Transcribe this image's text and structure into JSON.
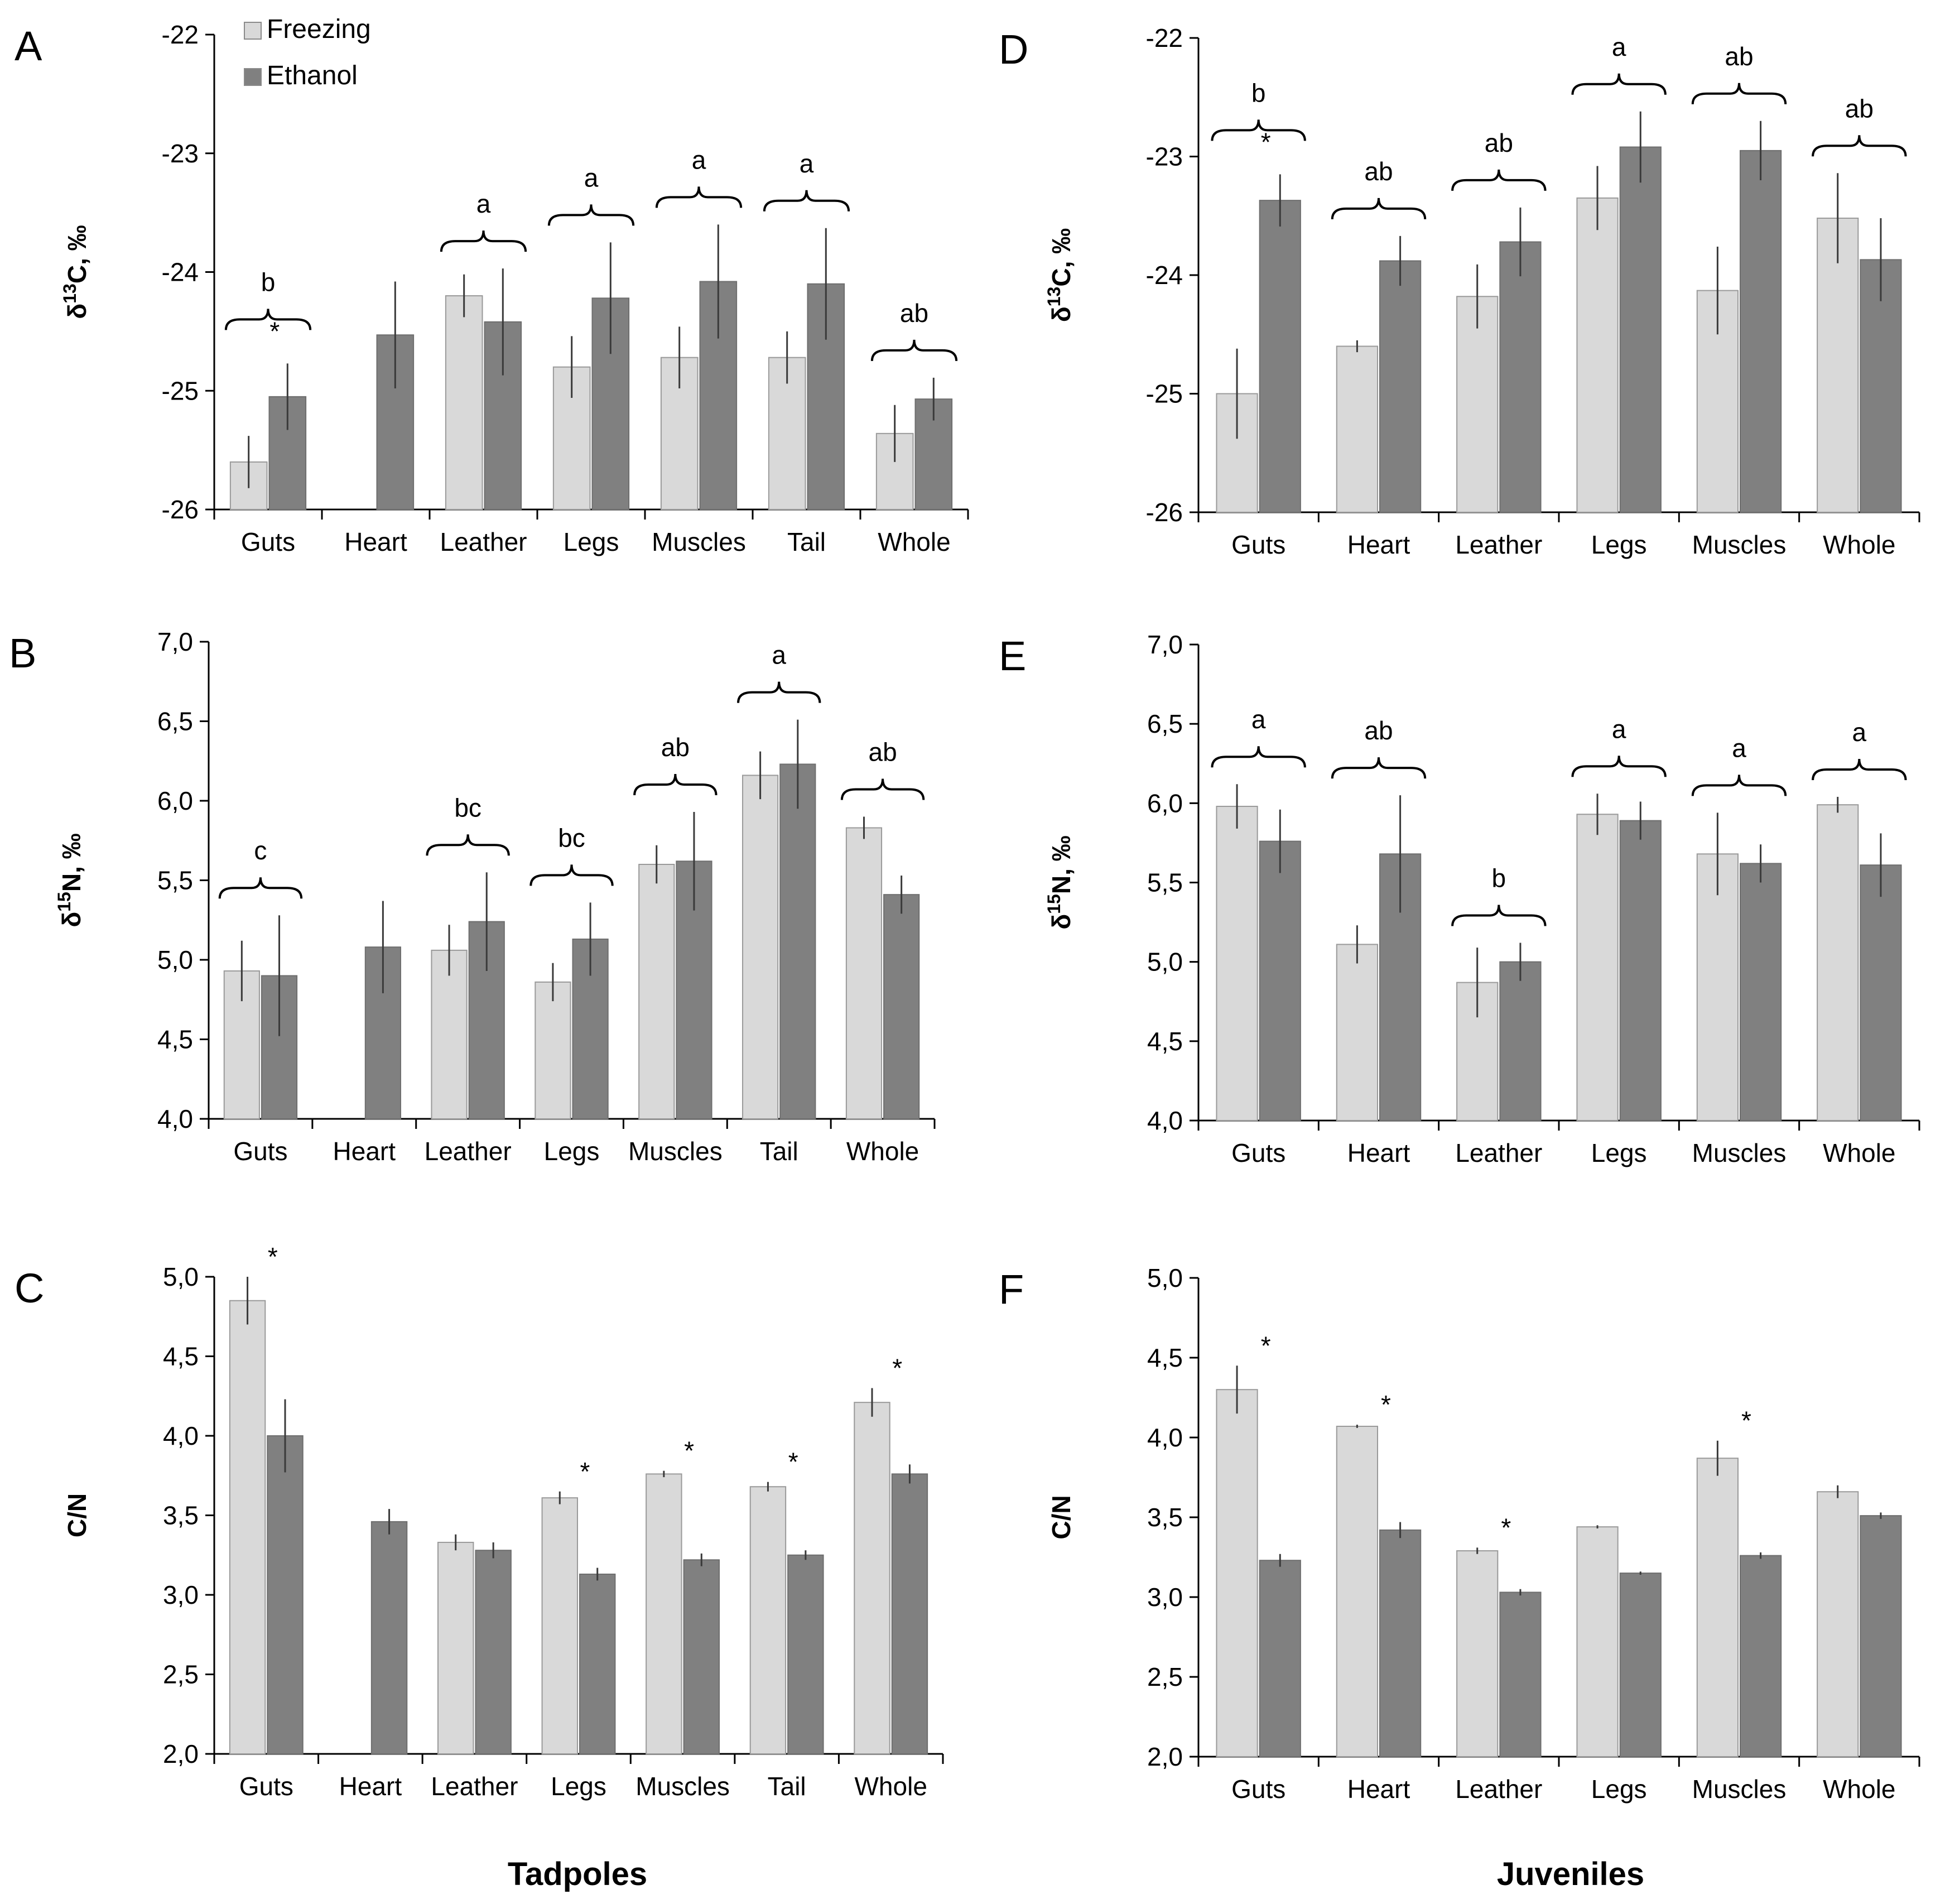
{
  "figure": {
    "group_labels": [
      "Tadpoles",
      "Juveniles"
    ],
    "legend": [
      {
        "label": "Freezing",
        "color": "#d9d9d9"
      },
      {
        "label": "Ethanol",
        "color": "#808080"
      }
    ]
  },
  "colors": {
    "freezing": "#d9d9d9",
    "ethanol": "#808080",
    "axis": "#000000",
    "error_bar": "#3a3a3a"
  },
  "chart_data": [
    {
      "panel": "A",
      "type": "bar",
      "ylabel": "δ13C, ‰",
      "ylim": [
        -26,
        -22
      ],
      "yticks": [
        "-22",
        "-23",
        "-24",
        "-25",
        "-26"
      ],
      "categories": [
        "Guts",
        "Heart",
        "Leather",
        "Legs",
        "Muscles",
        "Tail",
        "Whole"
      ],
      "series": [
        {
          "name": "Freezing",
          "values": [
            -25.6,
            null,
            -24.2,
            -24.8,
            -24.72,
            -24.72,
            -25.36
          ],
          "errors": [
            0.22,
            null,
            0.18,
            0.26,
            0.26,
            0.22,
            0.24
          ]
        },
        {
          "name": "Ethanol",
          "values": [
            -25.05,
            -24.53,
            -24.42,
            -24.22,
            -24.08,
            -24.1,
            -25.07
          ],
          "errors": [
            0.28,
            0.45,
            0.45,
            0.47,
            0.48,
            0.47,
            0.18
          ]
        }
      ],
      "letters": [
        "b",
        "",
        "a",
        "a",
        "a",
        "a",
        "ab"
      ],
      "stars": [
        "*",
        "",
        "",
        "",
        "",
        "",
        ""
      ]
    },
    {
      "panel": "B",
      "type": "bar",
      "ylabel": "δ15N, ‰",
      "ylim": [
        4.0,
        7.0
      ],
      "yticks": [
        "7,0",
        "6,5",
        "6,0",
        "5,5",
        "5,0",
        "4,5",
        "4,0"
      ],
      "categories": [
        "Guts",
        "Heart",
        "Leather",
        "Legs",
        "Muscles",
        "Tail",
        "Whole"
      ],
      "series": [
        {
          "name": "Freezing",
          "values": [
            4.93,
            null,
            5.06,
            4.86,
            5.6,
            6.16,
            5.83
          ],
          "errors": [
            0.19,
            null,
            0.16,
            0.12,
            0.12,
            0.15,
            0.07
          ]
        },
        {
          "name": "Ethanol",
          "values": [
            4.9,
            5.08,
            5.24,
            5.13,
            5.62,
            6.23,
            5.41
          ],
          "errors": [
            0.38,
            0.29,
            0.31,
            0.23,
            0.31,
            0.28,
            0.12
          ]
        }
      ],
      "letters": [
        "c",
        "",
        "bc",
        "bc",
        "ab",
        "a",
        "ab"
      ],
      "stars": [
        "",
        "",
        "",
        "",
        "",
        "",
        ""
      ]
    },
    {
      "panel": "C",
      "type": "bar",
      "ylabel": "C/N",
      "ylim": [
        2.0,
        5.0
      ],
      "yticks": [
        "5,0",
        "4,5",
        "4,0",
        "3,5",
        "3,0",
        "2,5",
        "2,0"
      ],
      "categories": [
        "Guts",
        "Heart",
        "Leather",
        "Legs",
        "Muscles",
        "Tail",
        "Whole"
      ],
      "series": [
        {
          "name": "Freezing",
          "values": [
            4.85,
            null,
            3.33,
            3.61,
            3.76,
            3.68,
            4.21
          ],
          "errors": [
            0.15,
            null,
            0.05,
            0.04,
            0.02,
            0.03,
            0.09
          ]
        },
        {
          "name": "Ethanol",
          "values": [
            4.0,
            3.46,
            3.28,
            3.13,
            3.22,
            3.25,
            3.76
          ],
          "errors": [
            0.23,
            0.08,
            0.05,
            0.04,
            0.04,
            0.03,
            0.06
          ]
        }
      ],
      "letters": [
        "",
        "",
        "",
        "",
        "",
        "",
        ""
      ],
      "stars": [
        "*",
        "",
        "",
        "*",
        "*",
        "*",
        "*"
      ]
    },
    {
      "panel": "D",
      "type": "bar",
      "ylabel": "δ13C, ‰",
      "ylim": [
        -26,
        -22
      ],
      "yticks": [
        "-22",
        "-23",
        "-24",
        "-25",
        "-26"
      ],
      "categories": [
        "Guts",
        "Heart",
        "Leather",
        "Legs",
        "Muscles",
        "Whole"
      ],
      "series": [
        {
          "name": "Freezing",
          "values": [
            -25.0,
            -24.6,
            -24.18,
            -23.35,
            -24.13,
            -23.52
          ],
          "errors": [
            0.38,
            0.05,
            0.27,
            0.27,
            0.37,
            0.38
          ]
        },
        {
          "name": "Ethanol",
          "values": [
            -23.37,
            -23.88,
            -23.72,
            -22.92,
            -22.95,
            -23.87
          ],
          "errors": [
            0.22,
            0.21,
            0.29,
            0.3,
            0.25,
            0.35
          ]
        }
      ],
      "letters": [
        "b",
        "ab",
        "ab",
        "a",
        "ab",
        "ab"
      ],
      "stars": [
        "*",
        "",
        "",
        "",
        "",
        ""
      ]
    },
    {
      "panel": "E",
      "type": "bar",
      "ylabel": "δ15N, ‰",
      "ylim": [
        4.0,
        7.0
      ],
      "yticks": [
        "7,0",
        "6,5",
        "6,0",
        "5,5",
        "5,0",
        "4,5",
        "4,0"
      ],
      "categories": [
        "Guts",
        "Heart",
        "Leather",
        "Legs",
        "Muscles",
        "Whole"
      ],
      "series": [
        {
          "name": "Freezing",
          "values": [
            5.98,
            5.11,
            4.87,
            5.93,
            5.68,
            5.99
          ],
          "errors": [
            0.14,
            0.12,
            0.22,
            0.13,
            0.26,
            0.05
          ]
        },
        {
          "name": "Ethanol",
          "values": [
            5.76,
            5.68,
            5.0,
            5.89,
            5.62,
            5.61
          ],
          "errors": [
            0.2,
            0.37,
            0.12,
            0.12,
            0.12,
            0.2
          ]
        }
      ],
      "letters": [
        "a",
        "ab",
        "b",
        "a",
        "a",
        "a"
      ],
      "stars": [
        "",
        "",
        "",
        "",
        "",
        ""
      ]
    },
    {
      "panel": "F",
      "type": "bar",
      "ylabel": "C/N",
      "ylim": [
        2.0,
        5.0
      ],
      "yticks": [
        "5,0",
        "4,5",
        "4,0",
        "3,5",
        "3,0",
        "2,5",
        "2,0"
      ],
      "categories": [
        "Guts",
        "Heart",
        "Leather",
        "Legs",
        "Muscles",
        "Whole"
      ],
      "series": [
        {
          "name": "Freezing",
          "values": [
            4.3,
            4.07,
            3.29,
            3.44,
            3.87,
            3.66
          ],
          "errors": [
            0.15,
            0.01,
            0.02,
            0.01,
            0.11,
            0.04
          ]
        },
        {
          "name": "Ethanol",
          "values": [
            3.23,
            3.42,
            3.03,
            3.15,
            3.26,
            3.51
          ],
          "errors": [
            0.04,
            0.05,
            0.02,
            0.01,
            0.02,
            0.02
          ]
        }
      ],
      "letters": [
        "",
        "",
        "",
        "",
        "",
        ""
      ],
      "stars": [
        "*",
        "*",
        "*",
        "",
        "*",
        ""
      ]
    }
  ]
}
